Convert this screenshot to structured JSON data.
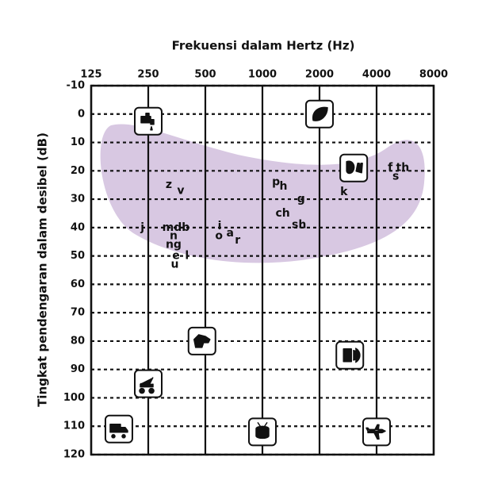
{
  "chart_data": {
    "type": "audiogram",
    "title": "Frekuensi dalam Hertz (Hz)",
    "y_label": "Tingkat pendengaran dalam desibel (dB)",
    "log_x": true,
    "xlim": [
      125,
      8000
    ],
    "xticks": [
      125,
      250,
      500,
      1000,
      2000,
      4000,
      8000
    ],
    "ylim": [
      -10,
      120
    ],
    "y_reversed": true,
    "yticks": [
      -10,
      0,
      10,
      20,
      30,
      40,
      50,
      60,
      70,
      80,
      90,
      100,
      110,
      120
    ],
    "grid": true,
    "banana_color": "#d8c8e2",
    "speech_sounds": {
      "color": "#111111",
      "labels": [
        "j",
        "z",
        "v",
        "mdb",
        "n",
        "ng",
        "e",
        "l",
        "u",
        "i",
        "o",
        "a",
        "r",
        "p",
        "h",
        "g",
        "ch",
        "sh",
        "k",
        "f",
        "s",
        "th"
      ],
      "x": [
        233,
        321,
        371,
        350,
        340,
        340,
        350,
        400,
        345,
        595,
        590,
        675,
        740,
        1180,
        1290,
        1600,
        1280,
        1560,
        2690,
        4720,
        5050,
        5490
      ],
      "y": [
        40,
        25,
        27,
        40,
        43,
        46,
        50,
        50,
        53,
        39.5,
        43,
        42,
        44.5,
        24,
        25.5,
        30,
        35,
        39,
        27.5,
        19,
        22,
        19
      ]
    },
    "environmental_sounds": {
      "x": [
        250,
        2000,
        3030,
        480,
        2890,
        250,
        175,
        1000,
        4000
      ],
      "y": [
        2.5,
        0,
        19,
        80,
        85,
        95,
        111,
        112,
        112
      ]
    }
  }
}
